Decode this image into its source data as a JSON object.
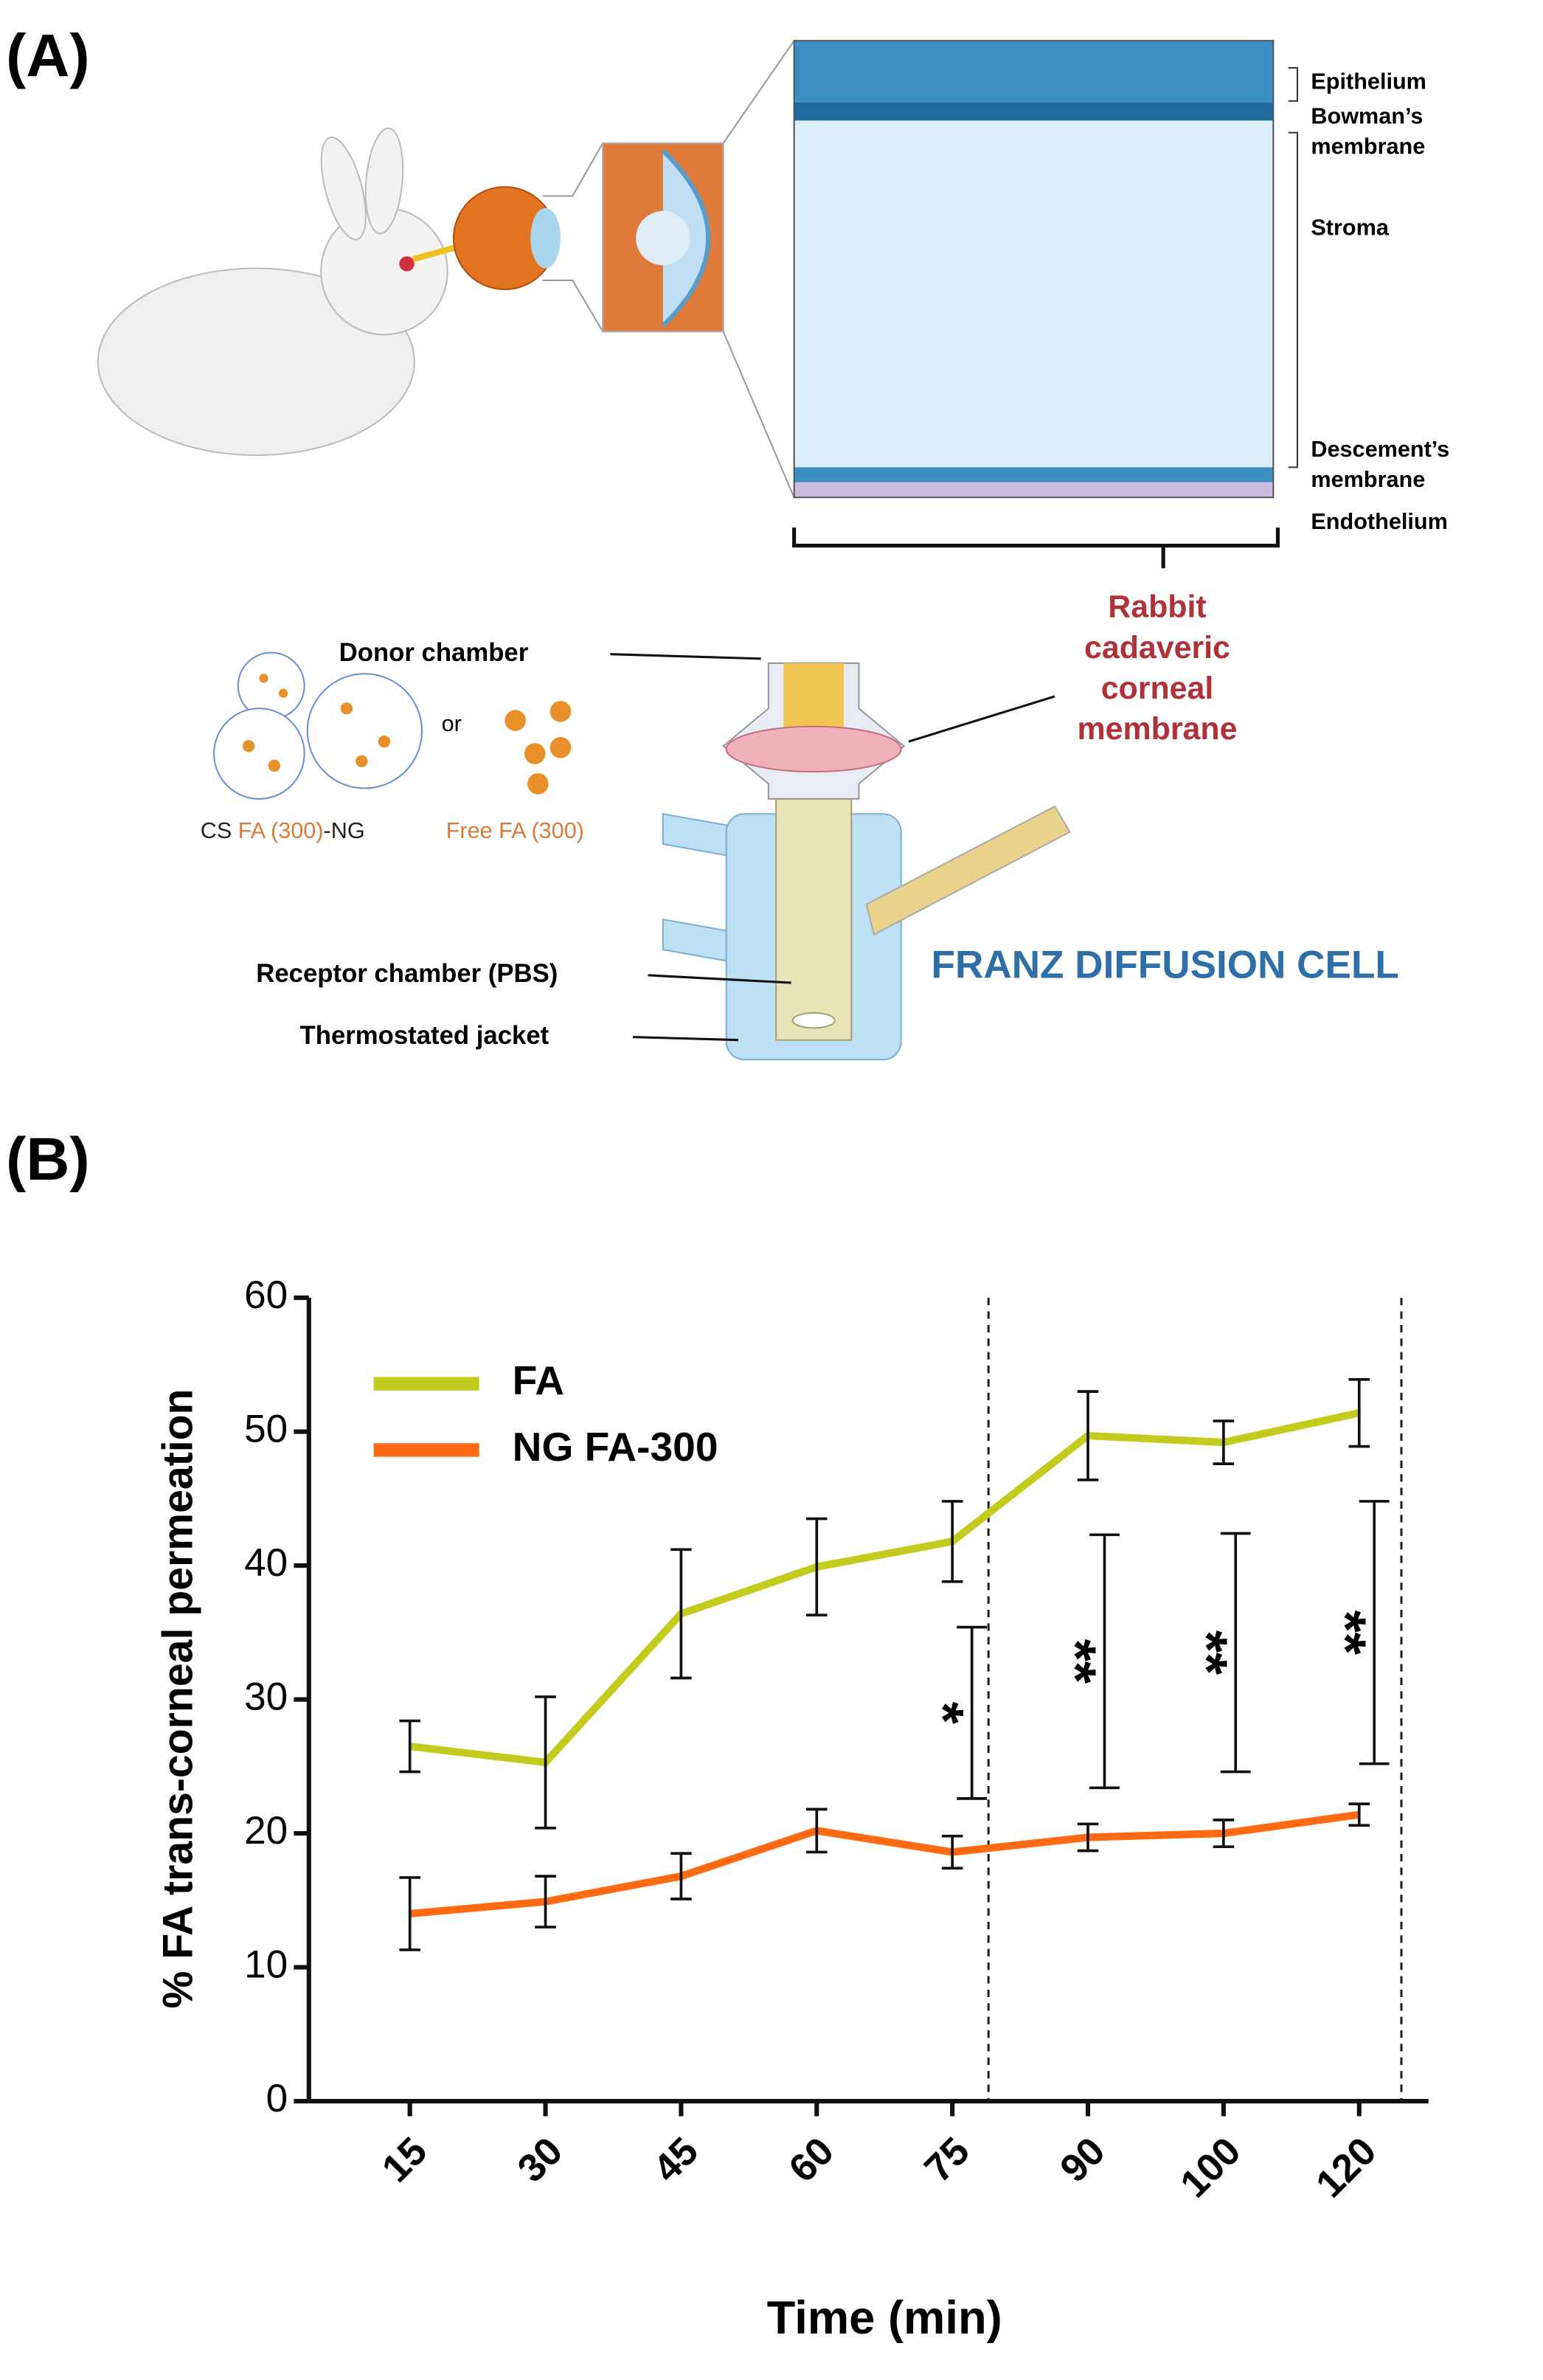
{
  "panel_a": {
    "label": "(A)",
    "layers": {
      "epithelium": "Epithelium",
      "bowman": [
        "Bowman’s",
        "membrane"
      ],
      "stroma": "Stroma",
      "descement": [
        "Descement’s",
        "membrane"
      ],
      "endothelium": "Endothelium"
    },
    "membrane": [
      "Rabbit",
      "cadaveric",
      "corneal",
      "membrane"
    ],
    "donor": "Donor chamber",
    "or": "or",
    "nanogel": [
      "CS ",
      "FA (300)",
      "-NG"
    ],
    "free": "Free FA (300)",
    "receptor": "Receptor chamber (PBS)",
    "jacket": "Thermostated jacket",
    "cell": "FRANZ DIFFUSION CELL"
  },
  "panel_b": {
    "label": "(B)"
  },
  "chart_data": {
    "type": "line",
    "xlabel": "Time (min)",
    "ylabel": "% FA trans-corneal permeation",
    "categories": [
      "15",
      "30",
      "45",
      "60",
      "75",
      "90",
      "100",
      "120"
    ],
    "series": [
      {
        "name": "FA",
        "color": "#c3cc1c",
        "values": [
          26.5,
          25.3,
          36.4,
          39.9,
          41.8,
          49.7,
          49.2,
          51.4
        ],
        "errors": [
          1.9,
          4.9,
          4.8,
          3.6,
          3.0,
          3.3,
          1.6,
          2.5
        ]
      },
      {
        "name": "NG FA-300",
        "color": "#ff6a12",
        "values": [
          14.0,
          14.9,
          16.8,
          20.2,
          18.6,
          19.7,
          20.0,
          21.4
        ],
        "errors": [
          2.7,
          1.9,
          1.7,
          1.6,
          1.2,
          1.0,
          1.0,
          0.8
        ]
      }
    ],
    "annotations": [
      {
        "text": "*",
        "low": 22.6,
        "high": 35.4
      },
      {
        "text": "**",
        "low": 23.4,
        "high": 42.3
      },
      {
        "text": "**",
        "low": 24.6,
        "high": 42.4
      },
      {
        "text": "**",
        "low": 25.2,
        "high": 44.8
      }
    ],
    "ylim": [
      0,
      60
    ],
    "yticks": [
      0,
      10,
      20,
      30,
      40,
      50,
      60
    ],
    "legend": "upper left"
  }
}
